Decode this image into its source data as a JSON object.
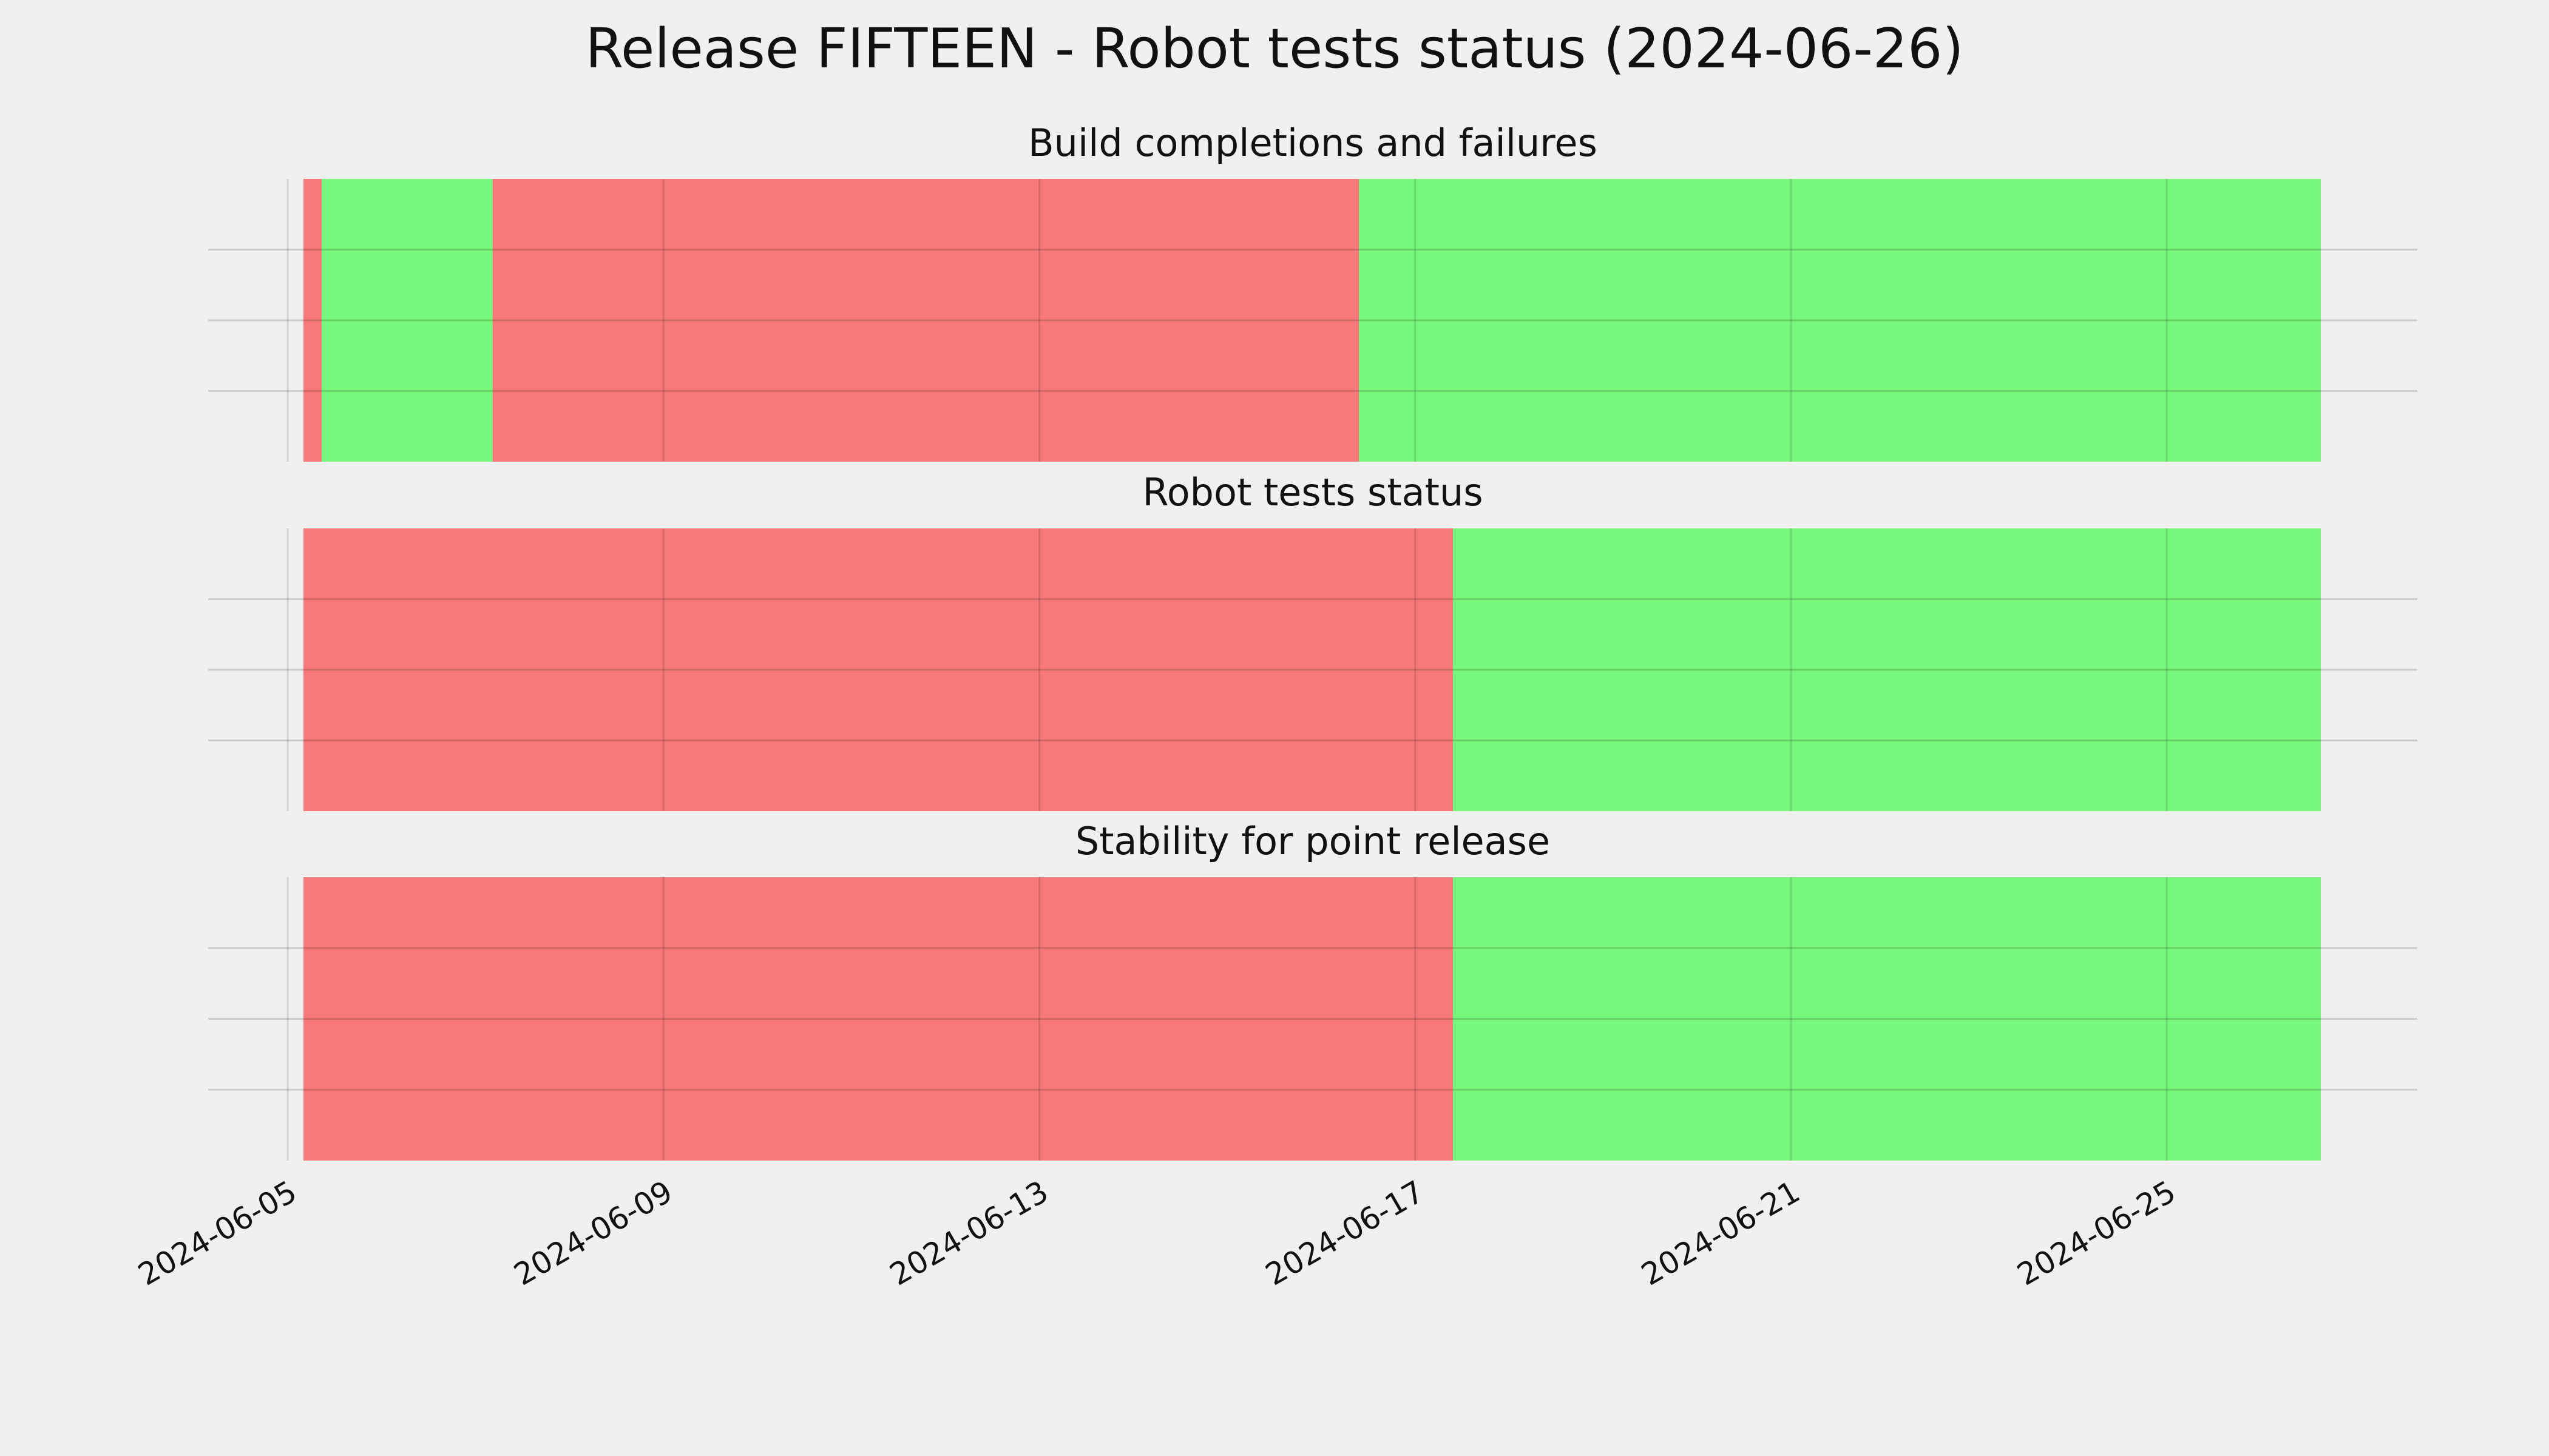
{
  "title": "Release FIFTEEN - Robot tests status (2024-06-26)",
  "chart_data": [
    {
      "type": "timeline",
      "title": "Build completions and failures",
      "spans": [
        {
          "start": "2024-06-05T04:00",
          "end": "2024-06-05T08:40",
          "color": "#f77878"
        },
        {
          "start": "2024-06-05T08:40",
          "end": "2024-06-07T04:20",
          "color": "#77f77b"
        },
        {
          "start": "2024-06-07T04:20",
          "end": "2024-06-16T09:40",
          "color": "#f77878"
        },
        {
          "start": "2024-06-16T09:40",
          "end": "2024-06-26T15:20",
          "color": "#77f77b"
        }
      ],
      "xlim": [
        "2024-06-04T03:40",
        "2024-06-27T16:00"
      ],
      "xticks": [
        "2024-06-05",
        "2024-06-09",
        "2024-06-13",
        "2024-06-17",
        "2024-06-21",
        "2024-06-25"
      ],
      "ylim": [
        0,
        1
      ],
      "yticks": [
        0.25,
        0.5,
        0.75
      ],
      "grid": true
    },
    {
      "type": "timeline",
      "title": "Robot tests status",
      "spans": [
        {
          "start": "2024-06-05T04:00",
          "end": "2024-06-17T09:40",
          "color": "#f77878"
        },
        {
          "start": "2024-06-17T09:40",
          "end": "2024-06-26T15:20",
          "color": "#77f77b"
        }
      ],
      "xlim": [
        "2024-06-04T03:40",
        "2024-06-27T16:00"
      ],
      "xticks": [
        "2024-06-05",
        "2024-06-09",
        "2024-06-13",
        "2024-06-17",
        "2024-06-21",
        "2024-06-25"
      ],
      "ylim": [
        0,
        1
      ],
      "yticks": [
        0.25,
        0.5,
        0.75
      ],
      "grid": true
    },
    {
      "type": "timeline",
      "title": "Stability for point release",
      "spans": [
        {
          "start": "2024-06-05T04:00",
          "end": "2024-06-17T09:40",
          "color": "#f77878"
        },
        {
          "start": "2024-06-17T09:40",
          "end": "2024-06-26T15:20",
          "color": "#77f77b"
        }
      ],
      "xlim": [
        "2024-06-04T03:40",
        "2024-06-27T16:00"
      ],
      "xticks": [
        "2024-06-05",
        "2024-06-09",
        "2024-06-13",
        "2024-06-17",
        "2024-06-21",
        "2024-06-25"
      ],
      "ylim": [
        0,
        1
      ],
      "yticks": [
        0.25,
        0.5,
        0.75
      ],
      "grid": true,
      "xtick_labels": true
    }
  ]
}
